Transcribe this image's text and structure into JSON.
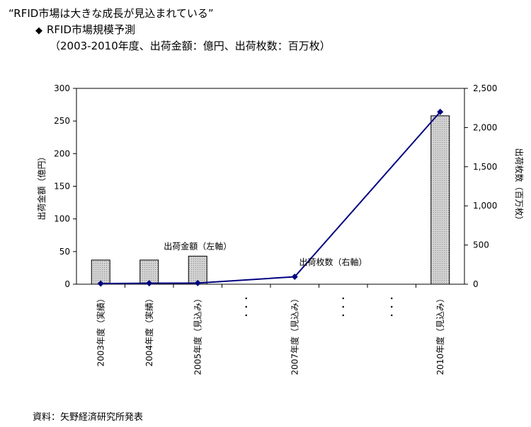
{
  "headline": "“RFID市場は大きな成長が見込まれている”",
  "title_marker": "◆",
  "title": "RFID市場規模予測",
  "subtitle": "（2003-2010年度、出荷金額：億円、出荷枚数：百万枚）",
  "source": "資料：矢野経済研究所発表",
  "chart_data": {
    "type": "bar",
    "categories": [
      "2003年度（実績）",
      "2004年度（実績）",
      "2005年度（見込み）",
      "・・・",
      "2007年度（見込み）",
      "・・・",
      "・・・",
      "2010年度（見込み）"
    ],
    "series": [
      {
        "name": "出荷金額（左軸）",
        "type": "bar",
        "axis": "left",
        "values": [
          37,
          37,
          43,
          null,
          null,
          null,
          null,
          258
        ]
      },
      {
        "name": "出荷枚数（右軸）",
        "type": "line",
        "axis": "right",
        "values": [
          8,
          12,
          15,
          null,
          95,
          null,
          null,
          2200
        ]
      }
    ],
    "ylabel": "出荷金額（億円）",
    "y2label": "出荷枚数（百万枚）",
    "ylim": [
      0,
      300
    ],
    "y2lim": [
      0,
      2500
    ],
    "yticks": [
      0,
      50,
      100,
      150,
      200,
      250,
      300
    ],
    "y2ticks": [
      "0",
      "500",
      "1,000",
      "1,500",
      "2,000",
      "2,500"
    ],
    "grid": false,
    "legend": "inline labels",
    "colors": {
      "bar_fill": "#c8c8c8",
      "bar_stroke": "#000000",
      "line": "#000080",
      "marker": "#000080",
      "axis": "#000000"
    }
  }
}
